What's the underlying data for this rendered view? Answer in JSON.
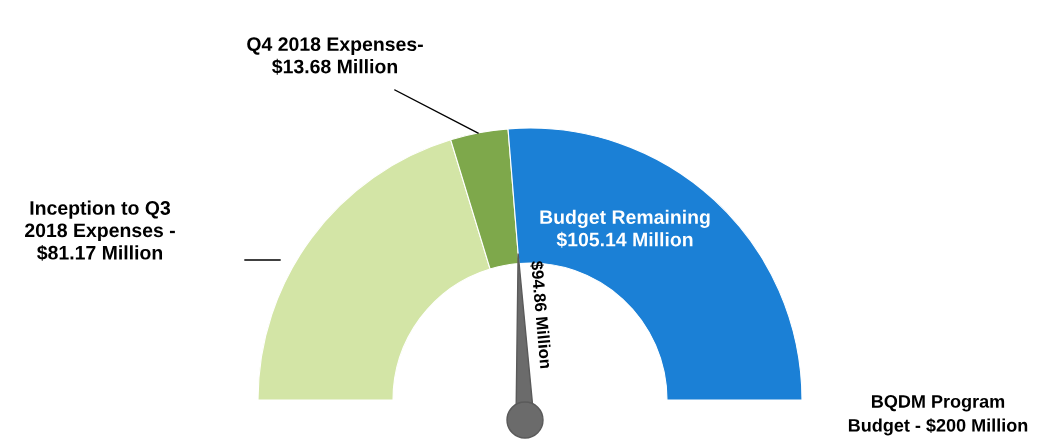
{
  "chart_data": {
    "type": "donut",
    "categories": [
      "Inception to Q3\n2018 Expenses -\n$81.17 Million",
      "Q4 2018 Expenses-\n$13.68 Million",
      "Budget Remaining\n$105.14 Million"
    ],
    "values": [
      81.17,
      13.68,
      105.14
    ],
    "colors": [
      "#d3e5a6",
      "#7ea84b",
      "#1b80d6"
    ],
    "needle": "Q4 2018 Expenses-\n$13.68 Million",
    "annotations": [
      "$94.86 Million",
      "BQDM Program\nBudget - $200 Million"
    ]
  }
}
